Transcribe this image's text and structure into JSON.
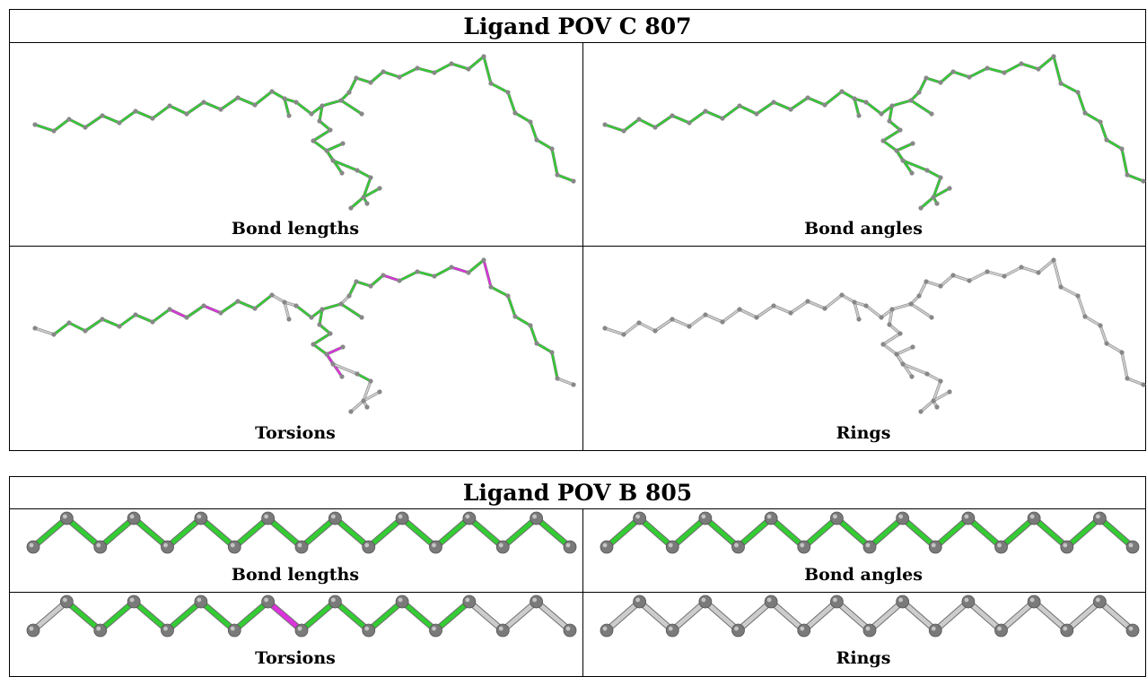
{
  "colors": {
    "outlier": "#dd33dd",
    "ok": "#33cc33",
    "unassessed": "#cccccc",
    "atom": "#888888"
  },
  "table1": {
    "title": "Ligand POV C 807",
    "panels": [
      {
        "caption": "Bond lengths",
        "mode": "all-green"
      },
      {
        "caption": "Bond angles",
        "mode": "all-green"
      },
      {
        "caption": "Torsions",
        "mode": "torsions"
      },
      {
        "caption": "Rings",
        "mode": "all-grey"
      }
    ]
  },
  "table2": {
    "title": "Ligand POV B 805",
    "panels": [
      {
        "caption": "Bond lengths",
        "bond_colors": [
          "ok",
          "ok",
          "ok",
          "ok",
          "ok",
          "ok",
          "ok",
          "ok",
          "ok",
          "ok",
          "ok",
          "ok",
          "ok",
          "ok",
          "ok",
          "ok"
        ]
      },
      {
        "caption": "Bond angles",
        "bond_colors": [
          "ok",
          "ok",
          "ok",
          "ok",
          "ok",
          "ok",
          "ok",
          "ok",
          "ok",
          "ok",
          "ok",
          "ok",
          "ok",
          "ok",
          "ok",
          "ok"
        ]
      },
      {
        "caption": "Torsions",
        "bond_colors": [
          "unassessed",
          "ok",
          "ok",
          "ok",
          "ok",
          "ok",
          "ok",
          "outlier",
          "ok",
          "ok",
          "ok",
          "ok",
          "ok",
          "unassessed",
          "unassessed",
          "unassessed"
        ]
      },
      {
        "caption": "Rings",
        "bond_colors": [
          "unassessed",
          "unassessed",
          "unassessed",
          "unassessed",
          "unassessed",
          "unassessed",
          "unassessed",
          "unassessed",
          "unassessed",
          "unassessed",
          "unassessed",
          "unassessed",
          "unassessed",
          "unassessed",
          "unassessed",
          "unassessed"
        ]
      }
    ]
  }
}
